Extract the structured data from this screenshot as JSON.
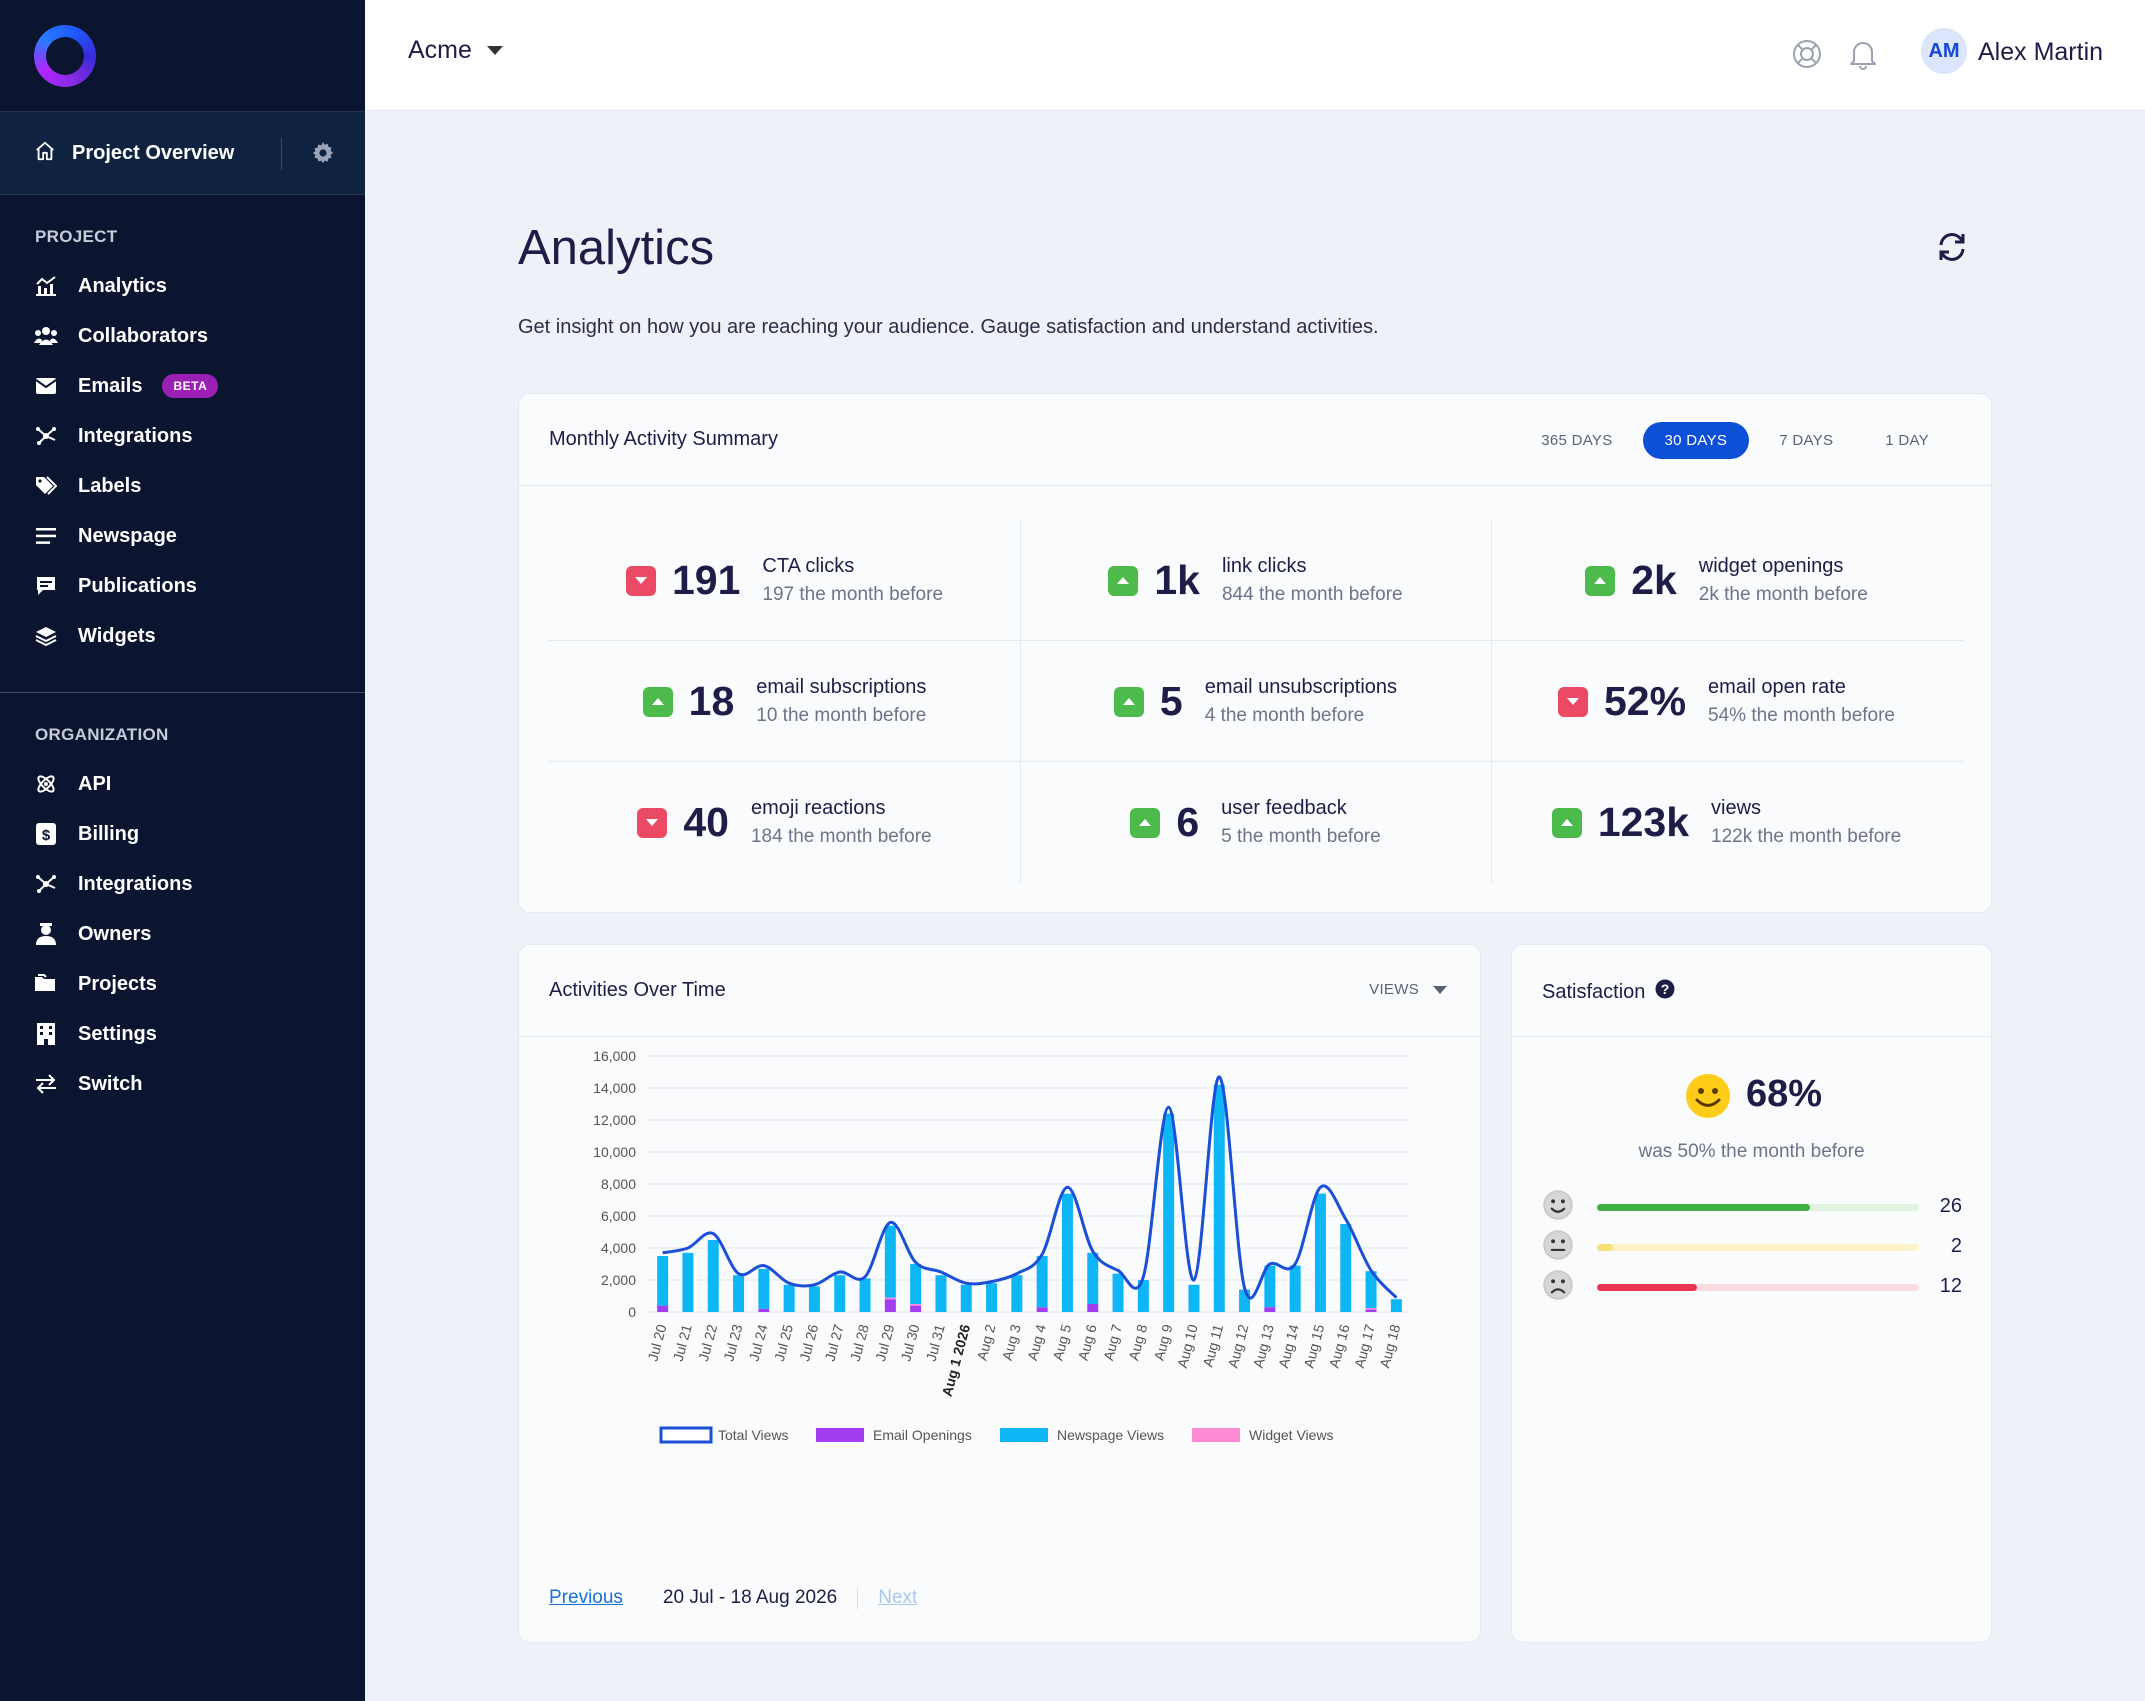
{
  "sidebar": {
    "project_overview": "Project Overview",
    "project_section": "PROJECT",
    "project_items": [
      {
        "label": "Analytics",
        "icon": "chart-icon"
      },
      {
        "label": "Collaborators",
        "icon": "users-icon"
      },
      {
        "label": "Emails",
        "icon": "envelope-icon",
        "badge": "BETA"
      },
      {
        "label": "Integrations",
        "icon": "integrations-icon"
      },
      {
        "label": "Labels",
        "icon": "tags-icon"
      },
      {
        "label": "Newspage",
        "icon": "lines-icon"
      },
      {
        "label": "Publications",
        "icon": "comment-icon"
      },
      {
        "label": "Widgets",
        "icon": "layers-icon"
      }
    ],
    "org_section": "ORGANIZATION",
    "org_items": [
      {
        "label": "API",
        "icon": "atom-icon"
      },
      {
        "label": "Billing",
        "icon": "dollar-icon"
      },
      {
        "label": "Integrations",
        "icon": "integrations-icon"
      },
      {
        "label": "Owners",
        "icon": "user-tie-icon"
      },
      {
        "label": "Projects",
        "icon": "folders-icon"
      },
      {
        "label": "Settings",
        "icon": "building-icon"
      },
      {
        "label": "Switch",
        "icon": "switch-icon"
      }
    ]
  },
  "topbar": {
    "org_name": "Acme",
    "user_initials": "AM",
    "user_name": "Alex Martin"
  },
  "main": {
    "title": "Analytics",
    "subtitle": "Get insight on how you are reaching your audience. Gauge satisfaction and understand activities."
  },
  "summary": {
    "title": "Monthly Activity Summary",
    "periods": [
      "365 DAYS",
      "30 DAYS",
      "7 DAYS",
      "1 DAY"
    ],
    "active_period": "30 DAYS",
    "stats": [
      {
        "value": "191",
        "label": "CTA clicks",
        "prev": "197 the month before",
        "trend": "down"
      },
      {
        "value": "1k",
        "label": "link clicks",
        "prev": "844 the month before",
        "trend": "up"
      },
      {
        "value": "2k",
        "label": "widget openings",
        "prev": "2k the month before",
        "trend": "up"
      },
      {
        "value": "18",
        "label": "email subscriptions",
        "prev": "10 the month before",
        "trend": "up"
      },
      {
        "value": "5",
        "label": "email unsubscriptions",
        "prev": "4 the month before",
        "trend": "up"
      },
      {
        "value": "52%",
        "label": "email open rate",
        "prev": "54% the month before",
        "trend": "down"
      },
      {
        "value": "40",
        "label": "emoji reactions",
        "prev": "184 the month before",
        "trend": "down"
      },
      {
        "value": "6",
        "label": "user feedback",
        "prev": "5 the month before",
        "trend": "up"
      },
      {
        "value": "123k",
        "label": "views",
        "prev": "122k the month before",
        "trend": "up"
      }
    ]
  },
  "activities": {
    "title": "Activities Over Time",
    "selector": "VIEWS",
    "pager": {
      "prev": "Previous",
      "range": "20 Jul - 18 Aug 2026",
      "next": "Next"
    }
  },
  "satisfaction": {
    "title": "Satisfaction",
    "percent": "68%",
    "was": "was 50% the month before",
    "rows": [
      {
        "count": "26",
        "share": 0.66,
        "color": "#3cb043",
        "track": "#dff3df"
      },
      {
        "count": "2",
        "share": 0.05,
        "color": "#f7e07a",
        "track": "#fdf3c8"
      },
      {
        "count": "12",
        "share": 0.31,
        "color": "#ea3550",
        "track": "#fadbe0"
      }
    ]
  },
  "colors": {
    "accent": "#0e4fd8",
    "sidebar_bg": "#0b1530",
    "up": "#4cbb4c",
    "down": "#ea4a63"
  },
  "chart_data": {
    "type": "bar",
    "categories": [
      "Jul 20",
      "Jul 21",
      "Jul 22",
      "Jul 23",
      "Jul 24",
      "Jul 25",
      "Jul 26",
      "Jul 27",
      "Jul 28",
      "Jul 29",
      "Jul 30",
      "Jul 31",
      "Aug 1 2026",
      "Aug 2",
      "Aug 3",
      "Aug 4",
      "Aug 5",
      "Aug 6",
      "Aug 7",
      "Aug 8",
      "Aug 9",
      "Aug 10",
      "Aug 11",
      "Aug 12",
      "Aug 13",
      "Aug 14",
      "Aug 15",
      "Aug 16",
      "Aug 17",
      "Aug 18"
    ],
    "bold_category": "Aug 1 2026",
    "ylim": [
      0,
      16000
    ],
    "yticks": [
      "0",
      "2,000",
      "4,000",
      "6,000",
      "8,000",
      "10,000",
      "12,000",
      "14,000",
      "16,000"
    ],
    "series": [
      {
        "name": "Total Views",
        "kind": "line",
        "color": "#1a4fd6",
        "values": [
          3700,
          4000,
          4900,
          2400,
          2900,
          1800,
          1700,
          2500,
          2200,
          5600,
          3100,
          2500,
          1800,
          1900,
          2400,
          3600,
          7800,
          3800,
          2600,
          2200,
          12800,
          2000,
          14700,
          1500,
          3000,
          3000,
          7800,
          5800,
          2600,
          900
        ]
      },
      {
        "name": "Email Openings",
        "kind": "bar",
        "color": "#a23ef0",
        "values": [
          400,
          0,
          0,
          0,
          200,
          0,
          0,
          0,
          0,
          800,
          400,
          0,
          0,
          0,
          0,
          300,
          0,
          500,
          0,
          0,
          0,
          0,
          0,
          0,
          300,
          0,
          0,
          0,
          150,
          0
        ]
      },
      {
        "name": "Newspage Views",
        "kind": "bar",
        "color": "#0fb6f5",
        "values": [
          3100,
          3700,
          4500,
          2300,
          2500,
          1700,
          1600,
          2300,
          2100,
          4500,
          2500,
          2300,
          1700,
          1800,
          2300,
          3200,
          7400,
          3200,
          2400,
          2000,
          12400,
          1700,
          14200,
          1400,
          2600,
          2900,
          7400,
          5500,
          2300,
          800
        ]
      },
      {
        "name": "Widget Views",
        "kind": "bar",
        "color": "#ff8ad8",
        "values": [
          0,
          0,
          0,
          0,
          0,
          0,
          0,
          0,
          0,
          100,
          100,
          0,
          0,
          0,
          0,
          0,
          0,
          0,
          0,
          0,
          0,
          0,
          0,
          0,
          0,
          0,
          0,
          0,
          100,
          0
        ]
      }
    ]
  }
}
